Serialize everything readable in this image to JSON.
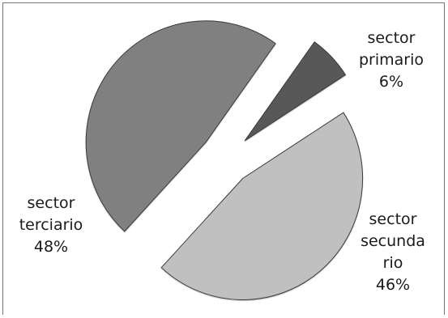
{
  "chart_data": {
    "type": "pie",
    "title": "",
    "exploded": true,
    "slices": [
      {
        "label_lines": [
          "sector",
          "primario"
        ],
        "value": 6,
        "value_label": "6%",
        "color": "#595959"
      },
      {
        "label_lines": [
          "sector",
          "secunda",
          "rio"
        ],
        "value": 46,
        "value_label": "46%",
        "color": "#c0c0c0"
      },
      {
        "label_lines": [
          "sector",
          "terciario"
        ],
        "value": 48,
        "value_label": "48%",
        "color": "#808080"
      }
    ]
  }
}
